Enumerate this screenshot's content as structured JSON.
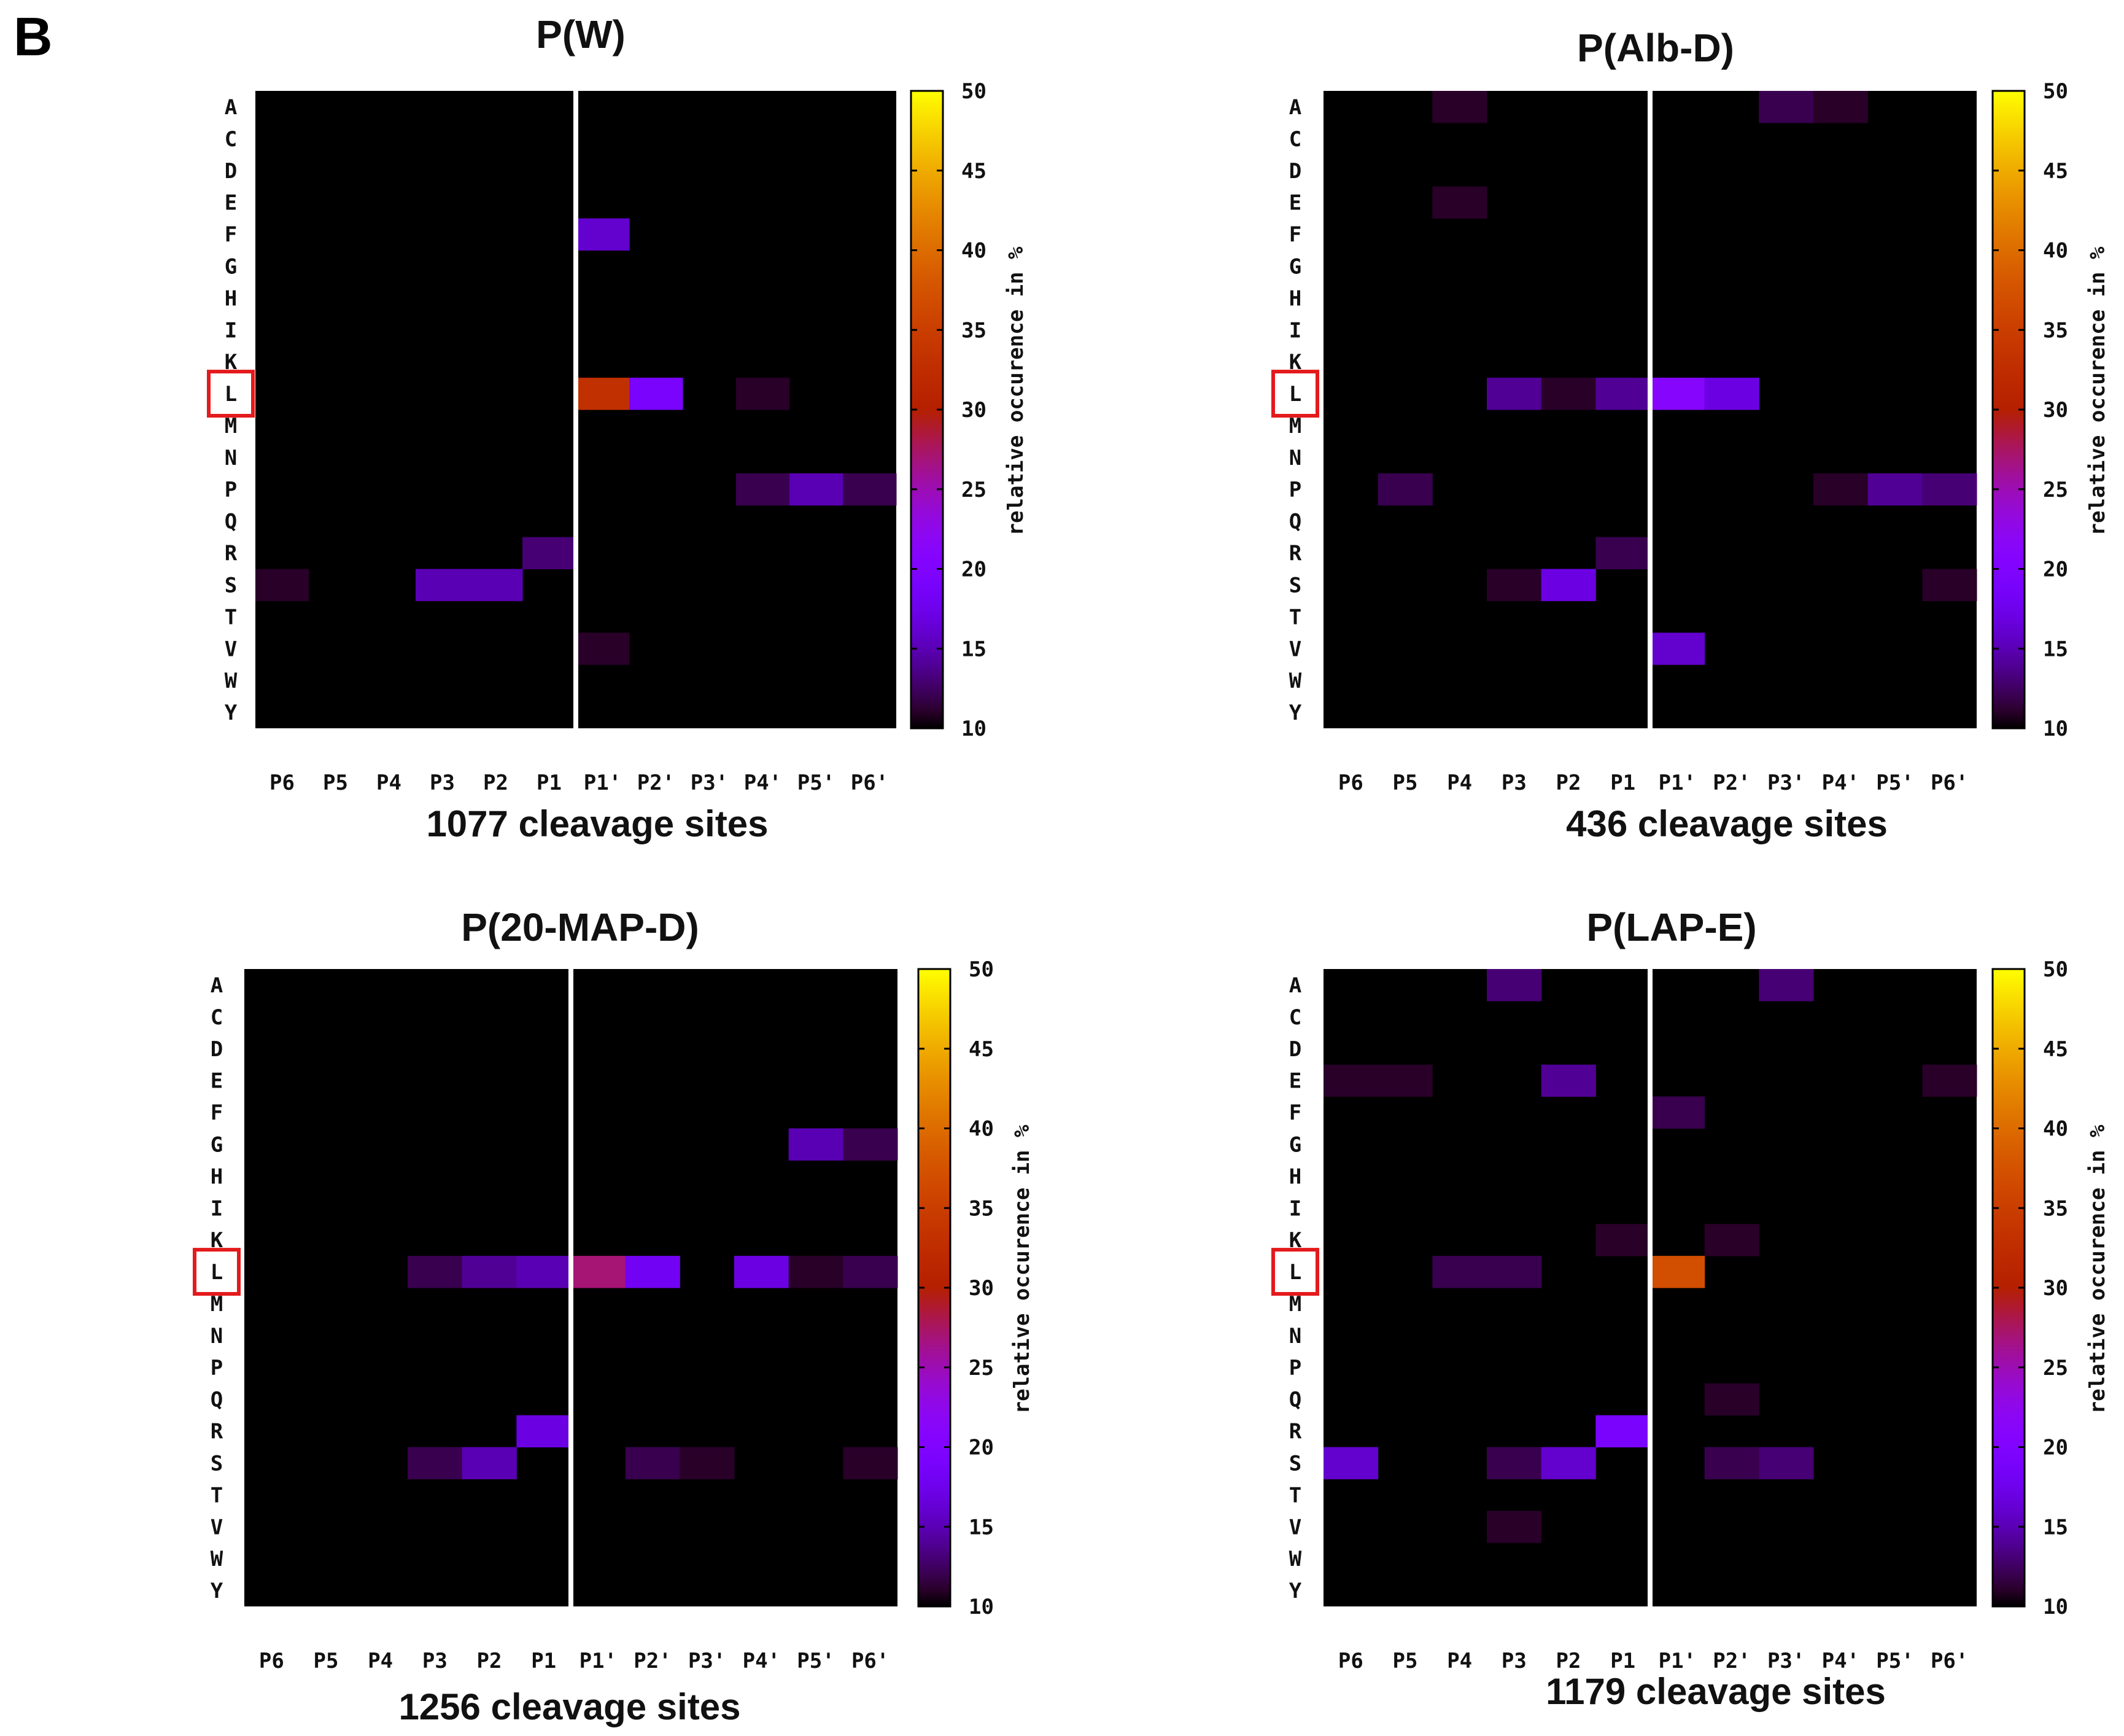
{
  "panel_label": "B",
  "colors": {
    "background": "#ffffff",
    "heatmap_zero": "#000000",
    "highlight_box": "#e41a1c",
    "divider": "#ffffff"
  },
  "colorbar": {
    "label": "relative occurence in %",
    "range": [
      10,
      50
    ],
    "ticks": [
      "10",
      "15",
      "20",
      "25",
      "30",
      "35",
      "40",
      "45",
      "50"
    ],
    "palette": "gnuplot"
  },
  "chart_data": [
    {
      "type": "heatmap",
      "title": "P(W)",
      "caption": "1077 cleavage sites",
      "rows": [
        "A",
        "C",
        "D",
        "E",
        "F",
        "G",
        "H",
        "I",
        "K",
        "L",
        "M",
        "N",
        "P",
        "Q",
        "R",
        "S",
        "T",
        "V",
        "W",
        "Y"
      ],
      "cols": [
        "P6",
        "P5",
        "P4",
        "P3",
        "P2",
        "P1",
        "P1'",
        "P2'",
        "P3'",
        "P4'",
        "P5'",
        "P6'"
      ],
      "highlight_row": "L",
      "value_range": [
        10,
        50
      ],
      "cells": [
        {
          "row": "F",
          "col": "P1'",
          "value": 16
        },
        {
          "row": "L",
          "col": "P1'",
          "value": 33
        },
        {
          "row": "L",
          "col": "P2'",
          "value": 19
        },
        {
          "row": "L",
          "col": "P4'",
          "value": 11
        },
        {
          "row": "P",
          "col": "P4'",
          "value": 12
        },
        {
          "row": "P",
          "col": "P5'",
          "value": 15
        },
        {
          "row": "P",
          "col": "P6'",
          "value": 12
        },
        {
          "row": "R",
          "col": "P1",
          "value": 13
        },
        {
          "row": "S",
          "col": "P6",
          "value": 11
        },
        {
          "row": "S",
          "col": "P3",
          "value": 15
        },
        {
          "row": "S",
          "col": "P2",
          "value": 15
        },
        {
          "row": "V",
          "col": "P1'",
          "value": 11
        }
      ]
    },
    {
      "type": "heatmap",
      "title": "P(Alb-D)",
      "caption": "436 cleavage sites",
      "rows": [
        "A",
        "C",
        "D",
        "E",
        "F",
        "G",
        "H",
        "I",
        "K",
        "L",
        "M",
        "N",
        "P",
        "Q",
        "R",
        "S",
        "T",
        "V",
        "W",
        "Y"
      ],
      "cols": [
        "P6",
        "P5",
        "P4",
        "P3",
        "P2",
        "P1",
        "P1'",
        "P2'",
        "P3'",
        "P4'",
        "P5'",
        "P6'"
      ],
      "highlight_row": "L",
      "value_range": [
        10,
        50
      ],
      "cells": [
        {
          "row": "A",
          "col": "P4",
          "value": 11
        },
        {
          "row": "A",
          "col": "P3'",
          "value": 12
        },
        {
          "row": "A",
          "col": "P4'",
          "value": 11
        },
        {
          "row": "E",
          "col": "P4",
          "value": 11
        },
        {
          "row": "L",
          "col": "P3",
          "value": 14
        },
        {
          "row": "L",
          "col": "P2",
          "value": 11
        },
        {
          "row": "L",
          "col": "P1",
          "value": 14
        },
        {
          "row": "L",
          "col": "P1'",
          "value": 21
        },
        {
          "row": "L",
          "col": "P2'",
          "value": 17
        },
        {
          "row": "P",
          "col": "P5",
          "value": 12
        },
        {
          "row": "P",
          "col": "P4'",
          "value": 11
        },
        {
          "row": "P",
          "col": "P5'",
          "value": 14
        },
        {
          "row": "P",
          "col": "P6'",
          "value": 13
        },
        {
          "row": "R",
          "col": "P1",
          "value": 12
        },
        {
          "row": "S",
          "col": "P3",
          "value": 11
        },
        {
          "row": "S",
          "col": "P2",
          "value": 17
        },
        {
          "row": "S",
          "col": "P6'",
          "value": 11
        },
        {
          "row": "V",
          "col": "P1'",
          "value": 16
        }
      ]
    },
    {
      "type": "heatmap",
      "title": "P(20-MAP-D)",
      "caption": "1256 cleavage sites",
      "rows": [
        "A",
        "C",
        "D",
        "E",
        "F",
        "G",
        "H",
        "I",
        "K",
        "L",
        "M",
        "N",
        "P",
        "Q",
        "R",
        "S",
        "T",
        "V",
        "W",
        "Y"
      ],
      "cols": [
        "P6",
        "P5",
        "P4",
        "P3",
        "P2",
        "P1",
        "P1'",
        "P2'",
        "P3'",
        "P4'",
        "P5'",
        "P6'"
      ],
      "highlight_row": "L",
      "value_range": [
        10,
        50
      ],
      "cells": [
        {
          "row": "G",
          "col": "P5'",
          "value": 15
        },
        {
          "row": "G",
          "col": "P6'",
          "value": 12
        },
        {
          "row": "L",
          "col": "P3",
          "value": 12
        },
        {
          "row": "L",
          "col": "P2",
          "value": 14
        },
        {
          "row": "L",
          "col": "P1",
          "value": 15
        },
        {
          "row": "L",
          "col": "P1'",
          "value": 27
        },
        {
          "row": "L",
          "col": "P2'",
          "value": 18
        },
        {
          "row": "L",
          "col": "P4'",
          "value": 17
        },
        {
          "row": "L",
          "col": "P5'",
          "value": 11
        },
        {
          "row": "L",
          "col": "P6'",
          "value": 12
        },
        {
          "row": "R",
          "col": "P1",
          "value": 17
        },
        {
          "row": "S",
          "col": "P3",
          "value": 12
        },
        {
          "row": "S",
          "col": "P2",
          "value": 15
        },
        {
          "row": "S",
          "col": "P2'",
          "value": 12
        },
        {
          "row": "S",
          "col": "P3'",
          "value": 11
        },
        {
          "row": "S",
          "col": "P6'",
          "value": 11
        }
      ]
    },
    {
      "type": "heatmap",
      "title": "P(LAP-E)",
      "caption": "1179 cleavage sites",
      "rows": [
        "A",
        "C",
        "D",
        "E",
        "F",
        "G",
        "H",
        "I",
        "K",
        "L",
        "M",
        "N",
        "P",
        "Q",
        "R",
        "S",
        "T",
        "V",
        "W",
        "Y"
      ],
      "cols": [
        "P6",
        "P5",
        "P4",
        "P3",
        "P2",
        "P1",
        "P1'",
        "P2'",
        "P3'",
        "P4'",
        "P5'",
        "P6'"
      ],
      "highlight_row": "L",
      "value_range": [
        10,
        50
      ],
      "cells": [
        {
          "row": "A",
          "col": "P3",
          "value": 13
        },
        {
          "row": "A",
          "col": "P3'",
          "value": 13
        },
        {
          "row": "E",
          "col": "P6",
          "value": 11
        },
        {
          "row": "E",
          "col": "P5",
          "value": 11
        },
        {
          "row": "E",
          "col": "P2",
          "value": 14
        },
        {
          "row": "E",
          "col": "P6'",
          "value": 11
        },
        {
          "row": "F",
          "col": "P1'",
          "value": 12
        },
        {
          "row": "K",
          "col": "P1",
          "value": 11
        },
        {
          "row": "K",
          "col": "P2'",
          "value": 11
        },
        {
          "row": "L",
          "col": "P4",
          "value": 12
        },
        {
          "row": "L",
          "col": "P3",
          "value": 12
        },
        {
          "row": "L",
          "col": "P1'",
          "value": 37
        },
        {
          "row": "Q",
          "col": "P2'",
          "value": 11
        },
        {
          "row": "R",
          "col": "P1",
          "value": 19
        },
        {
          "row": "S",
          "col": "P6",
          "value": 16
        },
        {
          "row": "S",
          "col": "P3",
          "value": 12
        },
        {
          "row": "S",
          "col": "P2",
          "value": 16
        },
        {
          "row": "S",
          "col": "P2'",
          "value": 12
        },
        {
          "row": "S",
          "col": "P3'",
          "value": 13
        },
        {
          "row": "V",
          "col": "P3",
          "value": 11
        }
      ]
    }
  ]
}
